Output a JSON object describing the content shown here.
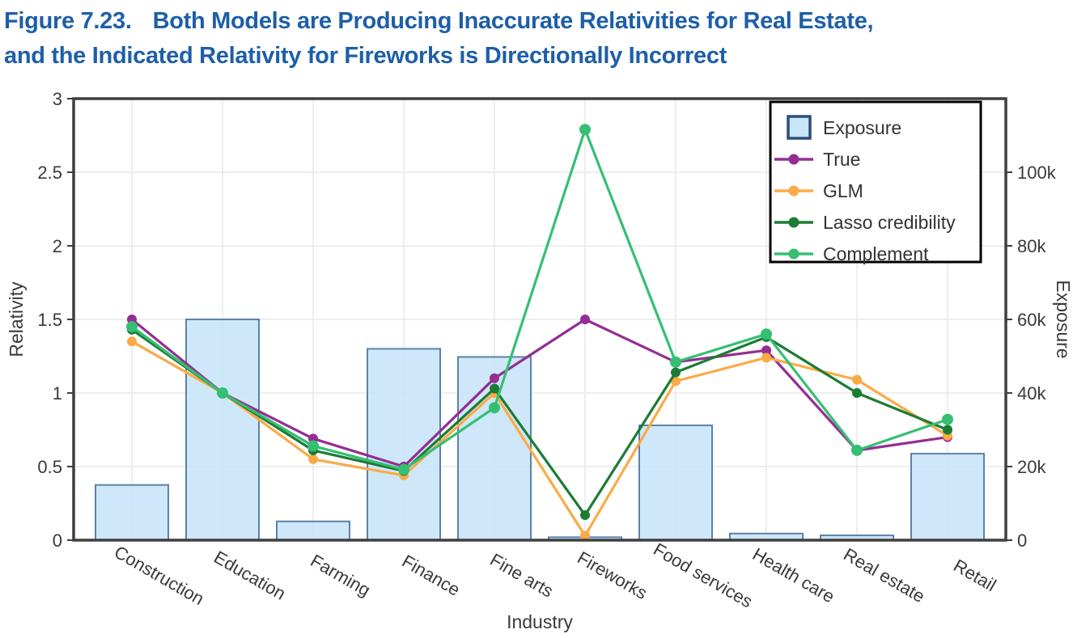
{
  "title": {
    "figure_label": "Figure 7.23.",
    "line1_rest": "Both Models are Producing Inaccurate Relativities for Real Estate,",
    "line2": "and the Indicated Relativity for Fireworks is Directionally Incorrect",
    "color": "#1d5fa8"
  },
  "chart_data": {
    "type": "combo-bar-line",
    "categories": [
      "Construction",
      "Education",
      "Farming",
      "Finance",
      "Fine arts",
      "Fireworks",
      "Food services",
      "Health care",
      "Real estate",
      "Retail"
    ],
    "x_axis": {
      "label": "Industry"
    },
    "left_axis": {
      "label": "Relativity",
      "range": [
        0,
        3
      ],
      "ticks": [
        {
          "label": "0",
          "value": 0
        },
        {
          "label": "0.5",
          "value": 0.5
        },
        {
          "label": "1",
          "value": 1
        },
        {
          "label": "1.5",
          "value": 1.5
        },
        {
          "label": "2",
          "value": 2
        },
        {
          "label": "2.5",
          "value": 2.5
        },
        {
          "label": "3",
          "value": 3
        }
      ]
    },
    "right_axis": {
      "label": "Exposure",
      "range": [
        0,
        120000
      ],
      "ticks": [
        {
          "label": "0",
          "value": 0
        },
        {
          "label": "20k",
          "value": 20000
        },
        {
          "label": "40k",
          "value": 40000
        },
        {
          "label": "60k",
          "value": 60000
        },
        {
          "label": "80k",
          "value": 80000
        },
        {
          "label": "100k",
          "value": 100000
        }
      ]
    },
    "bar_series": {
      "name": "Exposure",
      "axis": "right",
      "fill": "#c9e6f8",
      "stroke": "#5d81aa",
      "values": [
        15000,
        60000,
        5100,
        52000,
        49800,
        800,
        31200,
        1800,
        1300,
        23500
      ]
    },
    "line_series": [
      {
        "name": "True",
        "color": "#942d94",
        "values": [
          1.5,
          1.0,
          0.69,
          0.5,
          1.1,
          1.5,
          1.21,
          1.29,
          0.61,
          0.7
        ]
      },
      {
        "name": "GLM",
        "color": "#fbaa47",
        "values": [
          1.35,
          1.0,
          0.55,
          0.44,
          1.0,
          0.03,
          1.08,
          1.24,
          1.09,
          0.71
        ]
      },
      {
        "name": "Lasso credibility",
        "color": "#1b7c33",
        "values": [
          1.43,
          1.0,
          0.61,
          0.47,
          1.03,
          0.17,
          1.14,
          1.38,
          1.0,
          0.75
        ]
      },
      {
        "name": "Complement",
        "color": "#35bf73",
        "values": [
          1.45,
          1.0,
          0.64,
          0.48,
          0.9,
          2.79,
          1.21,
          1.4,
          0.61,
          0.82
        ]
      }
    ],
    "legend": {
      "position": "top-right",
      "entries": [
        "Exposure",
        "True",
        "GLM",
        "Lasso credibility",
        "Complement"
      ],
      "swatch_stroke": "#2e4d7b"
    },
    "style": {
      "frame_color": "#3f3f3f",
      "grid_color": "#e9e9e9",
      "tick_text_color": "#3a3a3a",
      "legend_text_color": "#333333",
      "grid": "on"
    }
  }
}
